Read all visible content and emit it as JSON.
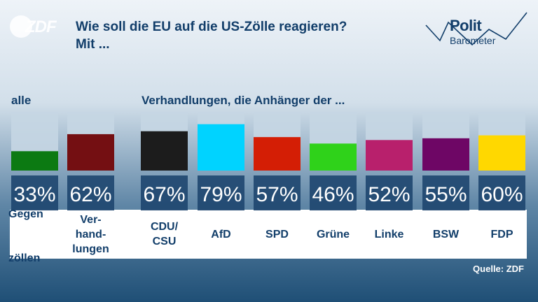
{
  "header": {
    "logo_text": "ZDF",
    "title_line1": "Wie soll die EU auf die US-Zölle reagieren?",
    "title_line2": "Mit ...",
    "brand_line1": "Polit",
    "brand_line2": "Barometer"
  },
  "group_labels": {
    "all": "alle",
    "parties": "Verhandlungen, die Anhänger der ..."
  },
  "category_labels": [
    [
      "Gegen",
      "zöllen"
    ],
    [
      "Ver-",
      "hand-",
      "lungen"
    ],
    [
      "CDU/",
      "CSU"
    ],
    [
      "AfD"
    ],
    [
      "SPD"
    ],
    [
      "Grüne"
    ],
    [
      "Linke"
    ],
    [
      "BSW"
    ],
    [
      "FDP"
    ]
  ],
  "chart_data": {
    "type": "bar",
    "title": "Wie soll die EU auf die US-Zölle reagieren? Mit ...",
    "categories": [
      "Gegenzöllen",
      "Verhandlungen",
      "CDU/CSU",
      "AfD",
      "SPD",
      "Grüne",
      "Linke",
      "BSW",
      "FDP"
    ],
    "values": [
      33,
      62,
      67,
      79,
      57,
      46,
      52,
      55,
      60
    ],
    "value_labels": [
      "33%",
      "62%",
      "67%",
      "79%",
      "57%",
      "46%",
      "52%",
      "55%",
      "60%"
    ],
    "colors": [
      "#0c7a12",
      "#740f12",
      "#1c1c1c",
      "#00d3ff",
      "#d41e05",
      "#2fd21a",
      "#b8206c",
      "#6e0665",
      "#ffd800"
    ],
    "ylim": [
      0,
      100
    ],
    "grid": false,
    "legend": "none"
  },
  "footer": {
    "source": "Quelle: ZDF"
  }
}
